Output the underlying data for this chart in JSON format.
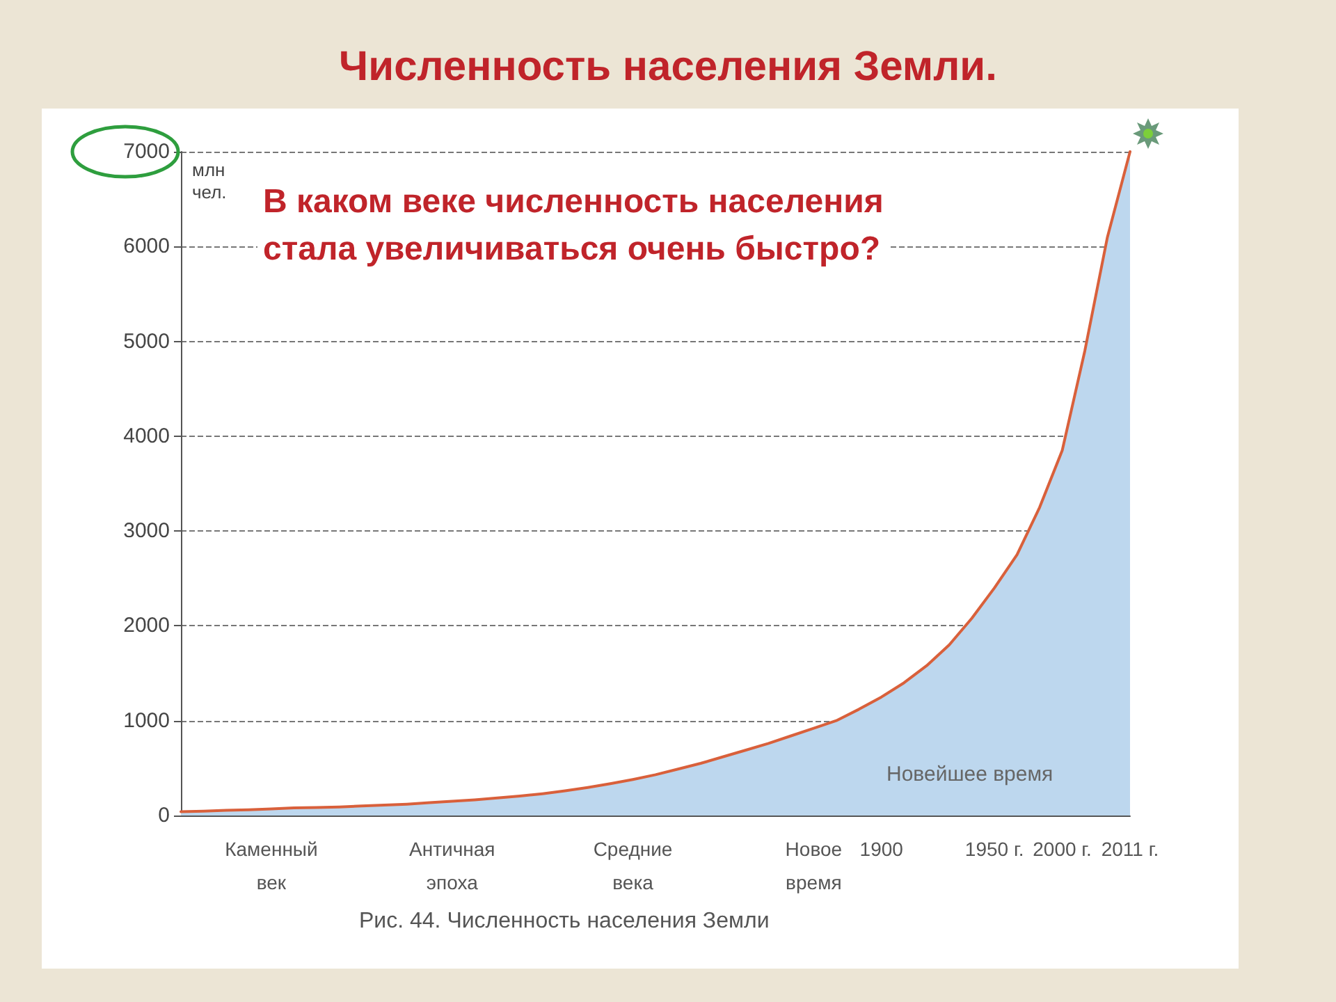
{
  "chart_data": {
    "type": "area",
    "title": "Численность населения Земли.",
    "ylabel": "млн\nчел.",
    "annotations": [
      "В каком веке численность населения\nстала увеличиваться очень быстро?",
      "Новейшее время",
      "Рис. 44. Численность населения Земли"
    ],
    "categories": [
      null,
      null,
      null,
      null,
      "Каменный\nвек",
      null,
      null,
      null,
      null,
      null,
      null,
      null,
      "Античная\nэпоха",
      null,
      null,
      null,
      null,
      null,
      null,
      null,
      "Средние\nвека",
      null,
      null,
      null,
      null,
      null,
      null,
      null,
      "Новое\nвремя",
      null,
      null,
      "1900",
      null,
      null,
      null,
      null,
      "1950 г.",
      null,
      null,
      "2000 г.",
      null,
      null,
      "2011 г."
    ],
    "series": [
      {
        "color": "#bdd7ee",
        "values": [
          40,
          45,
          55,
          60,
          70,
          80,
          85,
          90,
          100,
          110,
          120,
          135,
          150,
          165,
          185,
          205,
          230,
          260,
          295,
          335,
          380,
          430,
          490,
          550,
          620,
          690,
          760,
          840,
          920,
          1000,
          1120,
          1250,
          1400,
          1580,
          1800,
          2080,
          2400,
          2750,
          3250,
          3850,
          4900,
          6100,
          7000
        ]
      },
      {
        "type": "line",
        "color": "#d9603b",
        "values": [
          40,
          45,
          55,
          60,
          70,
          80,
          85,
          90,
          100,
          110,
          120,
          135,
          150,
          165,
          185,
          205,
          230,
          260,
          295,
          335,
          380,
          430,
          490,
          550,
          620,
          690,
          760,
          840,
          920,
          1000,
          1120,
          1250,
          1400,
          1580,
          1800,
          2080,
          2400,
          2750,
          3250,
          3850,
          4900,
          6100,
          7000
        ]
      }
    ],
    "ylim": [
      0,
      7000
    ],
    "yticks": [
      0,
      1000,
      2000,
      3000,
      4000,
      5000,
      6000,
      7000
    ],
    "grid": "y",
    "marker": "none",
    "line_style": "solid"
  }
}
